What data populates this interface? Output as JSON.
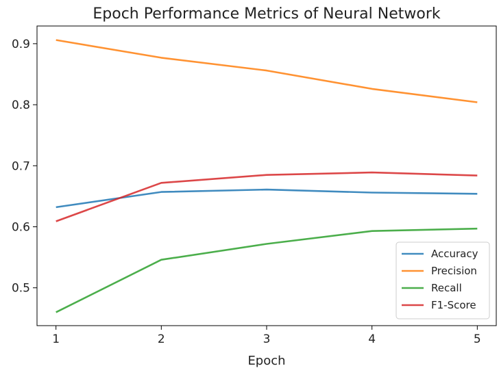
{
  "chart_data": {
    "type": "line",
    "title": "Epoch Performance Metrics of Neural Network",
    "xlabel": "Epoch",
    "ylabel": "",
    "x": [
      1,
      2,
      3,
      4,
      5
    ],
    "xticks": [
      "1",
      "2",
      "3",
      "4",
      "5"
    ],
    "yticks": [
      "0.5",
      "0.6",
      "0.7",
      "0.8",
      "0.9"
    ],
    "xlim": [
      0.82,
      5.18
    ],
    "ylim": [
      0.438,
      0.929
    ],
    "grid": false,
    "legend_position": "lower-right",
    "series": [
      {
        "name": "Accuracy",
        "color": "#1f77b4",
        "values": [
          0.632,
          0.657,
          0.661,
          0.656,
          0.654
        ]
      },
      {
        "name": "Precision",
        "color": "#ff7f0e",
        "values": [
          0.906,
          0.877,
          0.856,
          0.826,
          0.804
        ]
      },
      {
        "name": "Recall",
        "color": "#2ca02c",
        "values": [
          0.46,
          0.546,
          0.572,
          0.593,
          0.597
        ]
      },
      {
        "name": "F1-Score",
        "color": "#d62728",
        "values": [
          0.609,
          0.672,
          0.685,
          0.689,
          0.684
        ]
      }
    ]
  }
}
